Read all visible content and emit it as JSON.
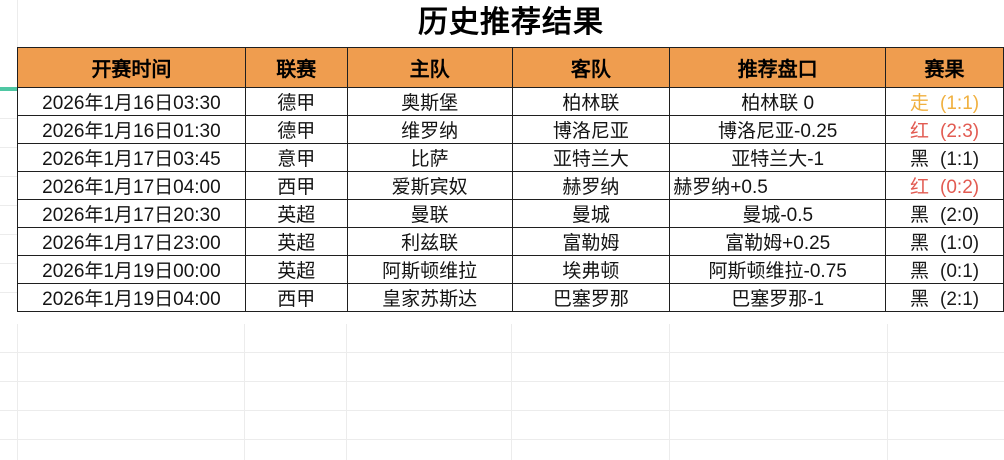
{
  "page": {
    "title": "历史推荐结果"
  },
  "table": {
    "headers": [
      "开赛时间",
      "联赛",
      "主队",
      "客队",
      "推荐盘口",
      "赛果"
    ],
    "rows": [
      {
        "time": "2026年1月16日03:30",
        "league": "德甲",
        "home": "奥斯堡",
        "away": "柏林联",
        "handicap": "柏林联 0",
        "handicap_align": "center",
        "result": "走",
        "score": "(1:1)"
      },
      {
        "time": "2026年1月16日01:30",
        "league": "德甲",
        "home": "维罗纳",
        "away": "博洛尼亚",
        "handicap": "博洛尼亚-0.25",
        "handicap_align": "center",
        "result": "红",
        "score": "(2:3)"
      },
      {
        "time": "2026年1月17日03:45",
        "league": "意甲",
        "home": "比萨",
        "away": "亚特兰大",
        "handicap": "亚特兰大-1",
        "handicap_align": "center",
        "result": "黑",
        "score": "(1:1)"
      },
      {
        "time": "2026年1月17日04:00",
        "league": "西甲",
        "home": "爱斯宾奴",
        "away": "赫罗纳",
        "handicap": "赫罗纳+0.5",
        "handicap_align": "left",
        "result": "红",
        "score": "(0:2)"
      },
      {
        "time": "2026年1月17日20:30",
        "league": "英超",
        "home": "曼联",
        "away": "曼城",
        "handicap": "曼城-0.5",
        "handicap_align": "center",
        "result": "黑",
        "score": "(2:0)"
      },
      {
        "time": "2026年1月17日23:00",
        "league": "英超",
        "home": "利兹联",
        "away": "富勒姆",
        "handicap": "富勒姆+0.25",
        "handicap_align": "center",
        "result": "黑",
        "score": "(1:0)"
      },
      {
        "time": "2026年1月19日00:00",
        "league": "英超",
        "home": "阿斯顿维拉",
        "away": "埃弗顿",
        "handicap": "阿斯顿维拉-0.75",
        "handicap_align": "center",
        "result": "黑",
        "score": "(0:1)"
      },
      {
        "time": "2026年1月19日04:00",
        "league": "西甲",
        "home": "皇家苏斯达",
        "away": "巴塞罗那",
        "handicap": "巴塞罗那-1",
        "handicap_align": "center",
        "result": "黑",
        "score": "(2:1)"
      }
    ]
  },
  "colors": {
    "header_bg": "#EF9D4F",
    "accent_green": "#4FC7A3",
    "result": {
      "走": "#F0B03F",
      "红": "#E25B52",
      "黑": "#1A1A1A"
    }
  }
}
